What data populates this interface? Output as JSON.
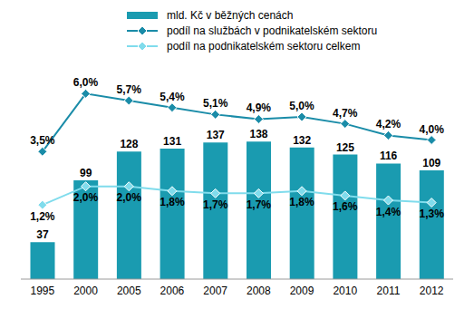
{
  "chart_data": {
    "type": "bar",
    "categories": [
      "1995",
      "2000",
      "2005",
      "2006",
      "2007",
      "2008",
      "2009",
      "2010",
      "2011",
      "2012"
    ],
    "series": [
      {
        "name": "mld. Kč v běžných cenách",
        "type": "bar",
        "color": "#1a9bb0",
        "values": [
          37,
          99,
          128,
          131,
          137,
          138,
          132,
          125,
          116,
          109
        ]
      },
      {
        "name": "podíl na službách v podnikatelském sektoru",
        "type": "line",
        "axis": "y2",
        "color": "#1a8ca8",
        "marker": "diamond",
        "values": [
          3.5,
          6.0,
          5.7,
          5.4,
          5.1,
          4.9,
          5.0,
          4.7,
          4.2,
          4.0
        ],
        "value_labels": [
          "3,5%",
          "6,0%",
          "5,7%",
          "5,4%",
          "5,1%",
          "4,9%",
          "5,0%",
          "4,7%",
          "4,2%",
          "4,0%"
        ]
      },
      {
        "name": "podíl na podnikatelském sektoru celkem",
        "type": "line",
        "axis": "y2",
        "color": "#80dcec",
        "marker": "diamond",
        "values": [
          1.2,
          2.0,
          2.0,
          1.8,
          1.7,
          1.7,
          1.8,
          1.6,
          1.4,
          1.3
        ],
        "value_labels": [
          "1,2%",
          "2,0%",
          "2,0%",
          "1,8%",
          "1,7%",
          "1,7%",
          "1,8%",
          "1,6%",
          "1,4%",
          "1,3%"
        ]
      }
    ],
    "ylim": [
      0,
      200
    ],
    "yticks": [],
    "y2lim": [
      -2,
      6.6
    ],
    "y2ticks": [],
    "data_labels": true,
    "tick_labels": "x",
    "legend": "top"
  }
}
